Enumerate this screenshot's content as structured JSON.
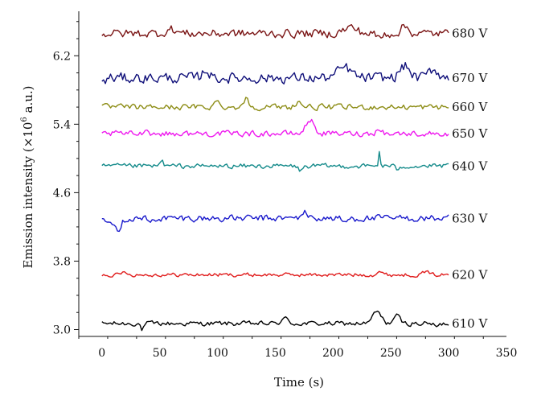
{
  "chart_data": {
    "type": "line",
    "title": "",
    "xlabel": "Time (s)",
    "ylabel_main": "Emission intensity (×10",
    "ylabel_sup": "6",
    "ylabel_tail": " a.u.)",
    "xlim": [
      -20,
      350
    ],
    "ylim": [
      2.92,
      6.72
    ],
    "xticks": [
      0,
      50,
      100,
      150,
      200,
      250,
      300,
      350
    ],
    "yticks": [
      3.0,
      3.8,
      4.6,
      5.4,
      6.2
    ],
    "ytick_labels": [
      "3.0",
      "3.8",
      "4.6",
      "5.4",
      "6.2"
    ],
    "series": [
      {
        "name": "610 V",
        "color": "#000000",
        "base": 3.07,
        "noise": 0.025,
        "bumps": [
          [
            35,
            -0.07,
            2
          ],
          [
            158,
            0.06,
            4
          ],
          [
            238,
            0.14,
            5
          ],
          [
            255,
            0.09,
            4
          ],
          [
            290,
            -0.04,
            3
          ]
        ]
      },
      {
        "name": "620 V",
        "color": "#e01b1b",
        "base": 3.64,
        "noise": 0.02,
        "bumps": [
          [
            20,
            0.04,
            3
          ],
          [
            240,
            0.04,
            3
          ],
          [
            280,
            0.04,
            3
          ]
        ]
      },
      {
        "name": "630 V",
        "color": "#1a1acc",
        "base": 4.3,
        "noise": 0.035,
        "bumps": [
          [
            14,
            -0.12,
            4
          ],
          [
            42,
            -0.05,
            3
          ],
          [
            175,
            0.07,
            4
          ],
          [
            210,
            -0.05,
            3
          ]
        ]
      },
      {
        "name": "640 V",
        "color": "#138a8a",
        "base": 4.91,
        "noise": 0.025,
        "bumps": [
          [
            52,
            0.06,
            2
          ],
          [
            172,
            -0.05,
            3
          ],
          [
            240,
            0.18,
            1
          ],
          [
            255,
            -0.04,
            2
          ]
        ]
      },
      {
        "name": "650 V",
        "color": "#ee18ee",
        "base": 5.29,
        "noise": 0.03,
        "bumps": [
          [
            38,
            0.08,
            2
          ],
          [
            180,
            0.16,
            5
          ],
          [
            240,
            0.07,
            3
          ]
        ]
      },
      {
        "name": "660 V",
        "color": "#8c8c14",
        "base": 5.6,
        "noise": 0.03,
        "bumps": [
          [
            125,
            0.15,
            2
          ],
          [
            100,
            0.06,
            4
          ],
          [
            170,
            0.06,
            4
          ]
        ]
      },
      {
        "name": "670 V",
        "color": "#10107a",
        "base": 5.94,
        "noise": 0.055,
        "bumps": [
          [
            0,
            -0.06,
            4
          ],
          [
            90,
            0.1,
            4
          ],
          [
            210,
            0.12,
            8
          ],
          [
            262,
            0.14,
            6
          ],
          [
            287,
            0.1,
            6
          ]
        ]
      },
      {
        "name": "680 V",
        "color": "#7a1414",
        "base": 6.46,
        "noise": 0.045,
        "bumps": [
          [
            60,
            0.05,
            6
          ],
          [
            215,
            0.07,
            8
          ],
          [
            262,
            0.08,
            5
          ],
          [
            240,
            -0.05,
            4
          ]
        ]
      }
    ],
    "x_start": 0,
    "x_end": 300,
    "x_step": 1.5
  }
}
